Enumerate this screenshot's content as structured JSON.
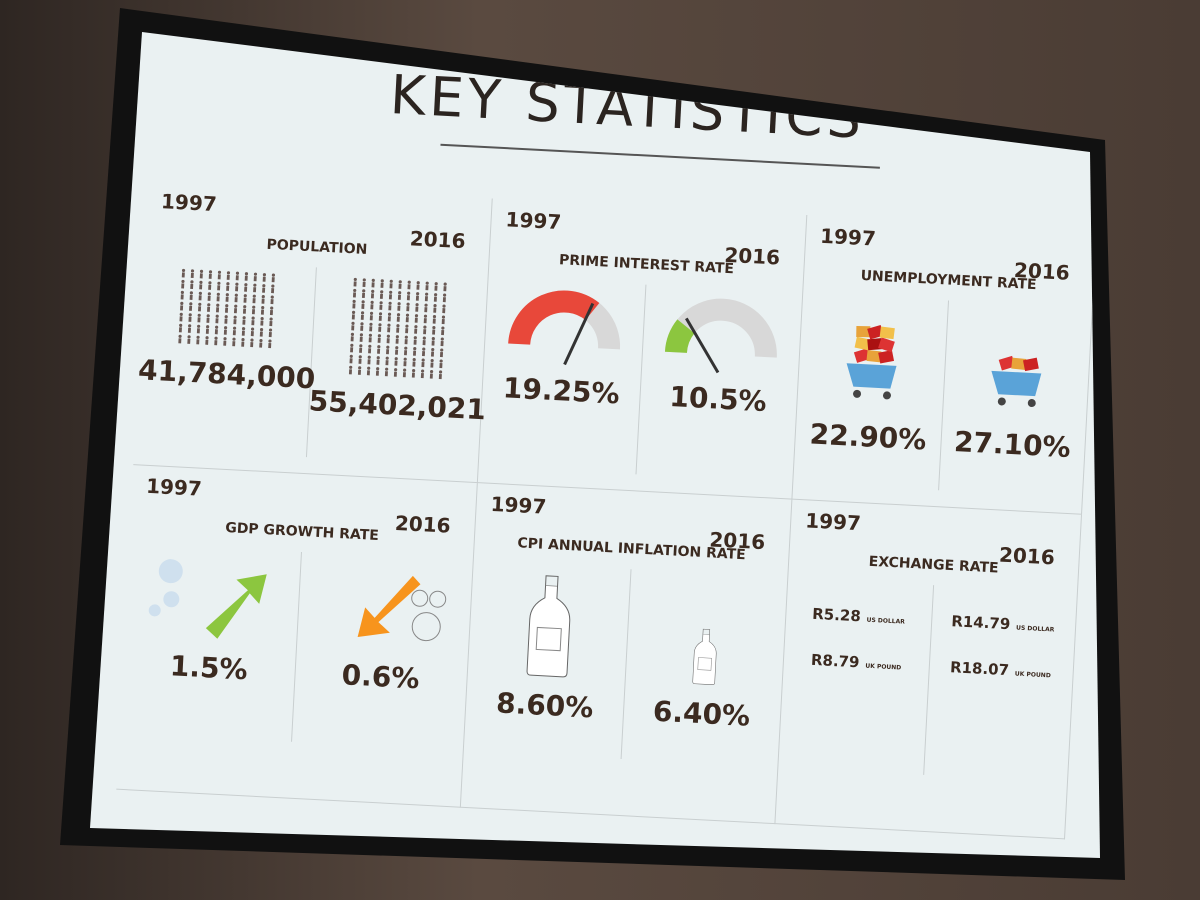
{
  "title": "KEY STATISTICS",
  "panels": [
    {
      "year_start": "1997",
      "year_end": "2016",
      "title": "POPULATION",
      "value_start": "41,784,000",
      "value_end": "55,402,021"
    },
    {
      "year_start": "1997",
      "year_end": "2016",
      "title": "PRIME INTEREST RATE",
      "value_start": "19.25%",
      "value_end": "10.5%"
    },
    {
      "year_start": "1997",
      "year_end": "2016",
      "title": "UNEMPLOYMENT RATE",
      "value_start": "22.90%",
      "value_end": "27.10%"
    },
    {
      "year_start": "1997",
      "year_end": "2016",
      "title": "GDP GROWTH RATE",
      "value_start": "1.5%",
      "value_end": "0.6%"
    },
    {
      "year_start": "1997",
      "year_end": "2016",
      "title": "CPI ANNUAL INFLATION RATE",
      "value_start": "8.60%",
      "value_end": "6.40%"
    },
    {
      "year_start": "1997",
      "year_end": "2016",
      "title": "EXCHANGE RATE",
      "value_start": [
        {
          "amount": "R5.28",
          "currency": "US DOLLAR"
        },
        {
          "amount": "R8.79",
          "currency": "UK POUND"
        }
      ],
      "value_end": [
        {
          "amount": "R14.79",
          "currency": "US DOLLAR"
        },
        {
          "amount": "R18.07",
          "currency": "UK POUND"
        }
      ]
    }
  ]
}
